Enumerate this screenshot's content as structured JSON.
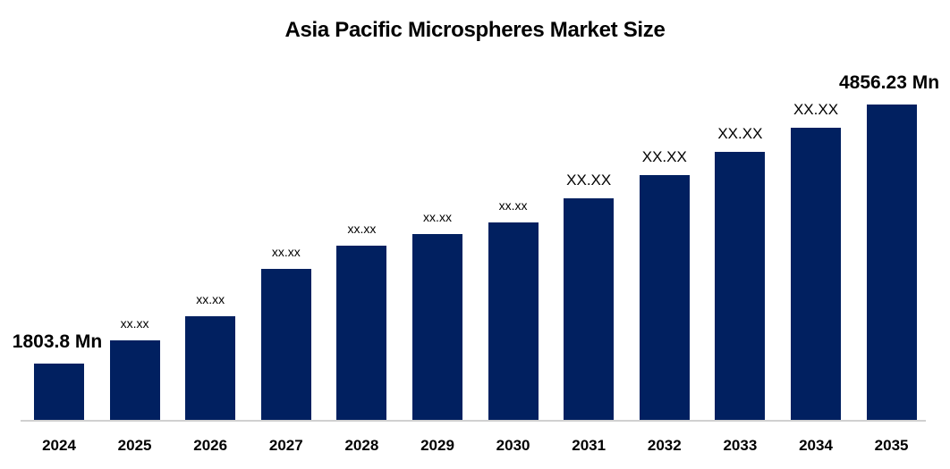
{
  "chart_data": {
    "type": "bar",
    "title": "Asia Pacific Microspheres Market Size",
    "xlabel": "",
    "ylabel": "",
    "unit": "Mn",
    "categories": [
      "2024",
      "2025",
      "2026",
      "2027",
      "2028",
      "2029",
      "2030",
      "2031",
      "2032",
      "2033",
      "2034",
      "2035"
    ],
    "values": [
      1803.8,
      2050,
      2300,
      2800,
      3050,
      3170,
      3290,
      3550,
      3790,
      4040,
      4290,
      4856.23
    ],
    "data_labels": [
      "1803.8 Mn",
      "xx.xx",
      "xx.xx",
      "xx.xx",
      "xx.xx",
      "xx.xx",
      "xx.xx",
      "XX.XX",
      "XX.XX",
      "XX.XX",
      "XX.XX",
      "4856.23 Mn"
    ],
    "bar_color": "#012060",
    "grid": false,
    "legend": "none",
    "ylim": [
      0,
      5000
    ]
  },
  "title": "Asia Pacific Microspheres Market Size"
}
